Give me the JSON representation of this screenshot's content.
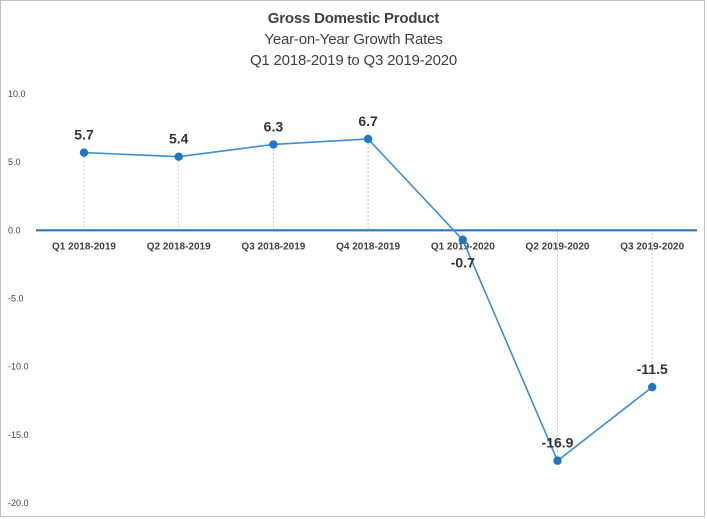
{
  "chart_data": {
    "type": "line",
    "title": "Gross Domestic Product",
    "subtitle": [
      "Year-on-Year Growth Rates",
      "Q1 2018-2019 to Q3 2019-2020"
    ],
    "categories": [
      "Q1 2018-2019",
      "Q2 2018-2019",
      "Q3 2018-2019",
      "Q4 2018-2019",
      "Q1 2019-2020",
      "Q2 2019-2020",
      "Q3 2019-2020"
    ],
    "series": [
      {
        "values": [
          5.7,
          5.4,
          6.3,
          6.7,
          -0.7,
          -16.9,
          -11.5
        ],
        "color": "#3a8fd1"
      }
    ],
    "data_labels": [
      "5.7",
      "5.4",
      "6.3",
      "6.7",
      "-0.7",
      "-16.9",
      "-11.5"
    ],
    "yticks": [
      "10.0",
      "5.0",
      "0.0",
      "-5.0",
      "-10.0",
      "-15.0",
      "-20.0"
    ],
    "ylim": [
      -20,
      10
    ],
    "grid": false,
    "drop_lines": true,
    "zero_line_color": "#2e75b6"
  }
}
